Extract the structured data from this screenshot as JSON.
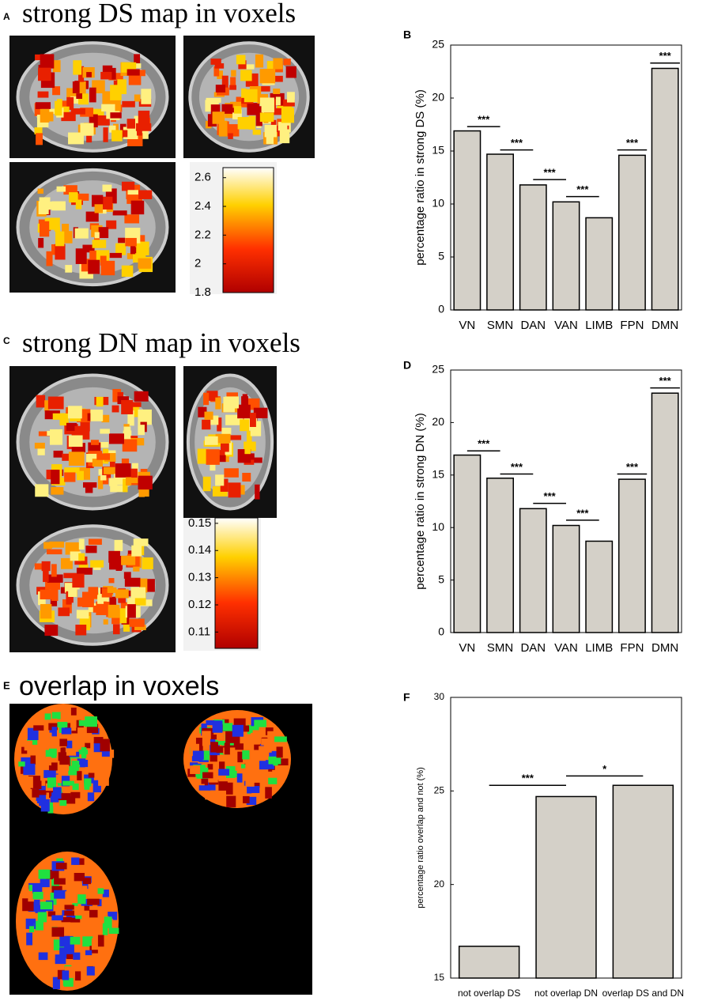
{
  "panels": [
    "A",
    "B",
    "C",
    "D",
    "E",
    "F"
  ],
  "maps": [
    {
      "title": "strong DS map in voxels",
      "colorbar": {
        "lim": [
          1.8,
          2.67
        ],
        "ticks": [
          1.8,
          2,
          2.2,
          2.4,
          2.6
        ]
      }
    },
    {
      "title": "strong DN map in voxels",
      "colorbar": {
        "lim": [
          0.104,
          0.152
        ],
        "ticks": [
          0.11,
          0.12,
          0.13,
          0.14,
          0.15
        ]
      }
    },
    {
      "title": "overlap in voxels"
    }
  ],
  "chart_data": [
    {
      "type": "bar",
      "ylabel": "percentage ratio  in strong DS (%)",
      "categories": [
        "VN",
        "SMN",
        "DAN",
        "VAN",
        "LIMB",
        "FPN",
        "DMN"
      ],
      "values": [
        16.9,
        14.7,
        11.8,
        10.2,
        8.7,
        14.6,
        22.8
      ],
      "color": "#d4d0c8",
      "ylim": [
        0,
        25
      ],
      "yticks": [
        0,
        5,
        10,
        15,
        20,
        25
      ],
      "annotations": [
        {
          "text": "***",
          "from": "VN",
          "to": "SMN",
          "y": 17.3
        },
        {
          "text": "***",
          "from": "SMN",
          "to": "DAN",
          "y": 15.1
        },
        {
          "text": "***",
          "from": "DAN",
          "to": "VAN",
          "y": 12.3
        },
        {
          "text": "***",
          "from": "VAN",
          "to": "LIMB",
          "y": 10.7
        },
        {
          "text": "***",
          "from": "FPN",
          "to": "FPN",
          "y": 15.1
        },
        {
          "text": "***",
          "from": "DMN",
          "to": "DMN",
          "y": 23.3
        }
      ]
    },
    {
      "type": "bar",
      "ylabel": "percentage ratio  in strong DN (%)",
      "categories": [
        "VN",
        "SMN",
        "DAN",
        "VAN",
        "LIMB",
        "FPN",
        "DMN"
      ],
      "values": [
        16.9,
        14.7,
        11.8,
        10.2,
        8.7,
        14.6,
        22.8
      ],
      "color": "#d4d0c8",
      "ylim": [
        0,
        25
      ],
      "yticks": [
        0,
        5,
        10,
        15,
        20,
        25
      ],
      "annotations": [
        {
          "text": "***",
          "from": "VN",
          "to": "SMN",
          "y": 17.3
        },
        {
          "text": "***",
          "from": "SMN",
          "to": "DAN",
          "y": 15.1
        },
        {
          "text": "***",
          "from": "DAN",
          "to": "VAN",
          "y": 12.3
        },
        {
          "text": "***",
          "from": "VAN",
          "to": "LIMB",
          "y": 10.7
        },
        {
          "text": "***",
          "from": "FPN",
          "to": "FPN",
          "y": 15.1
        },
        {
          "text": "***",
          "from": "DMN",
          "to": "DMN",
          "y": 23.3
        }
      ]
    },
    {
      "type": "bar",
      "ylabel": "percentage ratio overlap and not (%)",
      "categories": [
        "not overlap DS",
        "not overlap DN",
        "overlap DS and DN"
      ],
      "values": [
        16.7,
        24.7,
        25.3
      ],
      "color": "#d4d0c8",
      "ylim": [
        15,
        30
      ],
      "yticks": [
        15,
        20,
        25,
        30
      ],
      "annotations": [
        {
          "text": "***",
          "from": "not overlap DS",
          "to": "not overlap DN",
          "y": 25.3
        },
        {
          "text": "*",
          "from": "not overlap DN",
          "to": "overlap DS and DN",
          "y": 25.8
        }
      ]
    }
  ]
}
